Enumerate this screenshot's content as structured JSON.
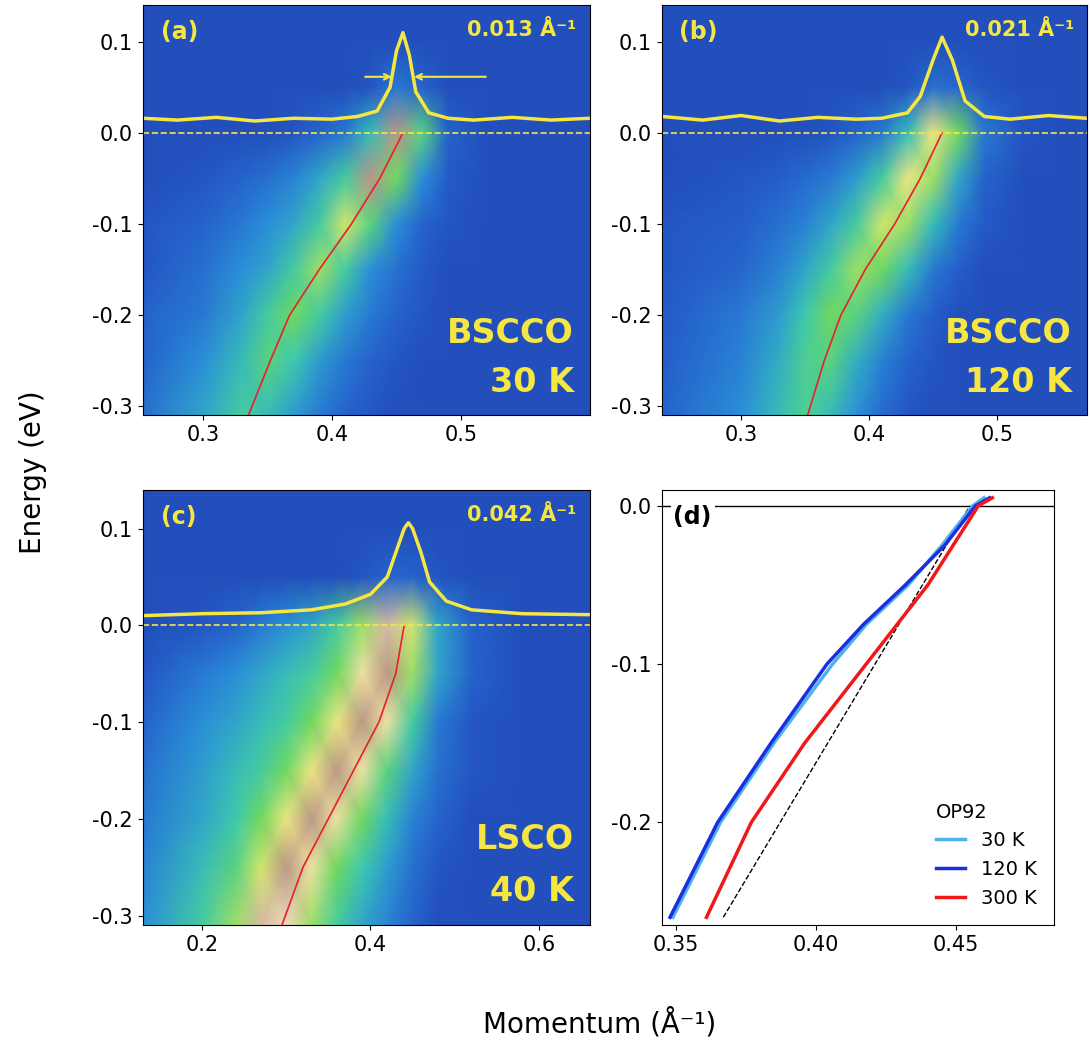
{
  "figure": {
    "xlabel": "Momentum (Å⁻¹)",
    "ylabel": "Energy (eV)"
  },
  "chart_data": [
    {
      "type": "heatmap",
      "title": "(a)",
      "annotations": [
        "BSCCO",
        "30 K"
      ],
      "x": [
        0.253,
        0.3,
        0.33,
        0.35,
        0.37,
        0.39,
        0.41,
        0.43,
        0.45,
        0.47,
        0.49,
        0.52,
        0.56,
        0.6
      ],
      "y": [
        0.14,
        0.1,
        0.05,
        0.0,
        -0.05,
        -0.1,
        -0.15,
        -0.2,
        -0.25,
        -0.31
      ],
      "cells": [
        [
          0.1,
          0.1,
          0.1,
          0.1,
          0.1,
          0.1,
          0.1,
          0.1,
          0.1,
          0.1,
          0.1,
          0.1,
          0.1,
          0.1
        ],
        [
          0.1,
          0.1,
          0.1,
          0.1,
          0.1,
          0.1,
          0.1,
          0.1,
          0.1,
          0.1,
          0.1,
          0.1,
          0.1,
          0.1
        ],
        [
          0.1,
          0.1,
          0.1,
          0.1,
          0.1,
          0.1,
          0.1,
          0.12,
          0.2,
          0.15,
          0.1,
          0.1,
          0.1,
          0.1
        ],
        [
          0.1,
          0.1,
          0.1,
          0.1,
          0.12,
          0.15,
          0.2,
          0.35,
          0.85,
          0.45,
          0.15,
          0.1,
          0.1,
          0.1
        ],
        [
          0.1,
          0.12,
          0.15,
          0.18,
          0.22,
          0.3,
          0.4,
          0.85,
          0.5,
          0.25,
          0.13,
          0.1,
          0.1,
          0.1
        ],
        [
          0.12,
          0.15,
          0.2,
          0.25,
          0.3,
          0.4,
          0.6,
          0.45,
          0.25,
          0.15,
          0.12,
          0.1,
          0.1,
          0.1
        ],
        [
          0.12,
          0.18,
          0.25,
          0.3,
          0.4,
          0.55,
          0.4,
          0.25,
          0.18,
          0.13,
          0.1,
          0.1,
          0.1,
          0.1
        ],
        [
          0.15,
          0.2,
          0.3,
          0.4,
          0.5,
          0.4,
          0.28,
          0.2,
          0.15,
          0.12,
          0.1,
          0.1,
          0.1,
          0.1
        ],
        [
          0.15,
          0.25,
          0.35,
          0.45,
          0.38,
          0.28,
          0.2,
          0.15,
          0.12,
          0.1,
          0.1,
          0.1,
          0.1,
          0.1
        ],
        [
          0.18,
          0.3,
          0.4,
          0.35,
          0.28,
          0.2,
          0.15,
          0.12,
          0.1,
          0.1,
          0.1,
          0.1,
          0.1,
          0.1
        ]
      ],
      "intensity_range": [
        0,
        1
      ],
      "dispersion": {
        "x": [
          0.455,
          0.437,
          0.415,
          0.39,
          0.367,
          0.352,
          0.335
        ],
        "y": [
          0.0,
          -0.05,
          -0.1,
          -0.15,
          -0.2,
          -0.25,
          -0.31
        ],
        "color": "#e8202a"
      },
      "mdc": {
        "x": [
          0.253,
          0.28,
          0.31,
          0.34,
          0.37,
          0.4,
          0.42,
          0.435,
          0.445,
          0.45,
          0.455,
          0.46,
          0.465,
          0.475,
          0.49,
          0.51,
          0.54,
          0.57,
          0.6
        ],
        "y": [
          0.016,
          0.014,
          0.017,
          0.013,
          0.016,
          0.015,
          0.018,
          0.024,
          0.05,
          0.09,
          0.11,
          0.085,
          0.045,
          0.022,
          0.016,
          0.014,
          0.017,
          0.014,
          0.016
        ],
        "color": "#f5e642"
      },
      "mdc_width": {
        "value": 0.013,
        "label": "0.013 Å⁻¹"
      },
      "fermi_level": 0,
      "xlim": [
        0.253,
        0.6
      ],
      "ylim": [
        -0.31,
        0.14
      ],
      "xticks": [
        0.3,
        0.4,
        0.5
      ],
      "yticks": [
        0.1,
        0.0,
        -0.1,
        -0.2,
        -0.3
      ]
    },
    {
      "type": "heatmap",
      "title": "(b)",
      "annotations": [
        "BSCCO",
        "120 K"
      ],
      "x": [
        0.238,
        0.3,
        0.33,
        0.35,
        0.37,
        0.39,
        0.41,
        0.43,
        0.45,
        0.47,
        0.49,
        0.52,
        0.55,
        0.57
      ],
      "y": [
        0.14,
        0.1,
        0.05,
        0.0,
        -0.05,
        -0.1,
        -0.15,
        -0.2,
        -0.25,
        -0.31
      ],
      "cells": [
        [
          0.1,
          0.1,
          0.1,
          0.1,
          0.1,
          0.1,
          0.1,
          0.1,
          0.1,
          0.1,
          0.1,
          0.1,
          0.1,
          0.1
        ],
        [
          0.1,
          0.1,
          0.1,
          0.1,
          0.1,
          0.1,
          0.1,
          0.1,
          0.1,
          0.1,
          0.1,
          0.1,
          0.1,
          0.1
        ],
        [
          0.1,
          0.1,
          0.1,
          0.1,
          0.1,
          0.1,
          0.1,
          0.12,
          0.18,
          0.16,
          0.12,
          0.1,
          0.1,
          0.1
        ],
        [
          0.1,
          0.1,
          0.1,
          0.1,
          0.12,
          0.15,
          0.2,
          0.35,
          0.65,
          0.5,
          0.2,
          0.12,
          0.1,
          0.1
        ],
        [
          0.1,
          0.12,
          0.14,
          0.17,
          0.2,
          0.28,
          0.4,
          0.65,
          0.55,
          0.3,
          0.15,
          0.1,
          0.1,
          0.1
        ],
        [
          0.12,
          0.14,
          0.18,
          0.22,
          0.3,
          0.4,
          0.6,
          0.55,
          0.35,
          0.2,
          0.13,
          0.1,
          0.1,
          0.1
        ],
        [
          0.12,
          0.16,
          0.22,
          0.3,
          0.4,
          0.55,
          0.5,
          0.35,
          0.2,
          0.14,
          0.1,
          0.1,
          0.1,
          0.1
        ],
        [
          0.13,
          0.2,
          0.28,
          0.38,
          0.5,
          0.45,
          0.32,
          0.2,
          0.14,
          0.1,
          0.1,
          0.1,
          0.1,
          0.1
        ],
        [
          0.14,
          0.22,
          0.32,
          0.42,
          0.45,
          0.32,
          0.22,
          0.15,
          0.12,
          0.1,
          0.1,
          0.1,
          0.1,
          0.1
        ],
        [
          0.15,
          0.25,
          0.35,
          0.42,
          0.35,
          0.25,
          0.17,
          0.12,
          0.1,
          0.1,
          0.1,
          0.1,
          0.1,
          0.1
        ]
      ],
      "intensity_range": [
        0,
        1
      ],
      "dispersion": {
        "x": [
          0.457,
          0.44,
          0.42,
          0.397,
          0.378,
          0.365,
          0.352
        ],
        "y": [
          0.0,
          -0.05,
          -0.1,
          -0.15,
          -0.2,
          -0.25,
          -0.31
        ],
        "color": "#e8202a"
      },
      "mdc": {
        "x": [
          0.238,
          0.27,
          0.3,
          0.33,
          0.36,
          0.39,
          0.41,
          0.43,
          0.44,
          0.45,
          0.457,
          0.465,
          0.475,
          0.49,
          0.51,
          0.54,
          0.57
        ],
        "y": [
          0.018,
          0.014,
          0.019,
          0.013,
          0.017,
          0.015,
          0.016,
          0.022,
          0.04,
          0.08,
          0.105,
          0.08,
          0.035,
          0.018,
          0.015,
          0.019,
          0.016
        ],
        "color": "#f5e642"
      },
      "mdc_width": {
        "value": 0.021,
        "label": "0.021 Å⁻¹"
      },
      "fermi_level": 0,
      "xlim": [
        0.238,
        0.57
      ],
      "ylim": [
        -0.31,
        0.14
      ],
      "xticks": [
        0.3,
        0.4,
        0.5
      ],
      "yticks": [
        0.1,
        0.0,
        -0.1,
        -0.2,
        -0.3
      ]
    },
    {
      "type": "heatmap",
      "title": "(c)",
      "annotations": [
        "LSCO",
        "40 K"
      ],
      "x": [
        0.13,
        0.2,
        0.24,
        0.27,
        0.3,
        0.33,
        0.36,
        0.39,
        0.42,
        0.45,
        0.48,
        0.52,
        0.58,
        0.66
      ],
      "y": [
        0.14,
        0.1,
        0.05,
        0.0,
        -0.05,
        -0.1,
        -0.15,
        -0.2,
        -0.25,
        -0.31
      ],
      "cells": [
        [
          0.1,
          0.1,
          0.1,
          0.1,
          0.1,
          0.1,
          0.1,
          0.1,
          0.1,
          0.1,
          0.1,
          0.1,
          0.1,
          0.1
        ],
        [
          0.1,
          0.1,
          0.1,
          0.1,
          0.1,
          0.1,
          0.1,
          0.1,
          0.1,
          0.1,
          0.1,
          0.1,
          0.1,
          0.1
        ],
        [
          0.1,
          0.1,
          0.1,
          0.1,
          0.1,
          0.1,
          0.1,
          0.12,
          0.15,
          0.15,
          0.12,
          0.1,
          0.1,
          0.1
        ],
        [
          0.1,
          0.12,
          0.15,
          0.2,
          0.25,
          0.3,
          0.4,
          0.55,
          0.8,
          0.6,
          0.3,
          0.15,
          0.1,
          0.1
        ],
        [
          0.12,
          0.2,
          0.25,
          0.3,
          0.35,
          0.4,
          0.5,
          0.7,
          0.85,
          0.55,
          0.3,
          0.15,
          0.1,
          0.1
        ],
        [
          0.15,
          0.25,
          0.3,
          0.35,
          0.4,
          0.5,
          0.65,
          0.85,
          0.7,
          0.4,
          0.2,
          0.12,
          0.1,
          0.1
        ],
        [
          0.18,
          0.28,
          0.35,
          0.4,
          0.5,
          0.65,
          0.85,
          0.7,
          0.45,
          0.3,
          0.18,
          0.12,
          0.1,
          0.1
        ],
        [
          0.2,
          0.3,
          0.38,
          0.5,
          0.65,
          0.85,
          0.7,
          0.5,
          0.35,
          0.22,
          0.15,
          0.1,
          0.1,
          0.1
        ],
        [
          0.22,
          0.35,
          0.45,
          0.6,
          0.85,
          0.7,
          0.5,
          0.38,
          0.28,
          0.18,
          0.12,
          0.1,
          0.1,
          0.1
        ],
        [
          0.25,
          0.4,
          0.55,
          0.8,
          0.75,
          0.55,
          0.4,
          0.3,
          0.22,
          0.15,
          0.1,
          0.1,
          0.1,
          0.1
        ]
      ],
      "intensity_range": [
        0,
        1
      ],
      "dispersion": {
        "x": [
          0.44,
          0.43,
          0.41,
          0.38,
          0.35,
          0.32,
          0.295
        ],
        "y": [
          0.0,
          -0.05,
          -0.1,
          -0.15,
          -0.2,
          -0.25,
          -0.31
        ],
        "color": "#e8202a"
      },
      "mdc": {
        "x": [
          0.13,
          0.2,
          0.27,
          0.33,
          0.37,
          0.4,
          0.42,
          0.43,
          0.44,
          0.445,
          0.45,
          0.46,
          0.47,
          0.49,
          0.52,
          0.58,
          0.66
        ],
        "y": [
          0.01,
          0.012,
          0.013,
          0.016,
          0.022,
          0.032,
          0.05,
          0.075,
          0.1,
          0.106,
          0.1,
          0.075,
          0.045,
          0.025,
          0.016,
          0.012,
          0.011
        ],
        "color": "#f5e642"
      },
      "mdc_width": {
        "value": 0.042,
        "label": "0.042 Å⁻¹"
      },
      "fermi_level": 0,
      "xlim": [
        0.13,
        0.66
      ],
      "ylim": [
        -0.31,
        0.14
      ],
      "xticks": [
        0.2,
        0.4,
        0.6
      ],
      "yticks": [
        0.1,
        0.0,
        -0.1,
        -0.2,
        -0.3
      ]
    },
    {
      "type": "line",
      "title": "(d)",
      "legend": "lower right",
      "legend_title": "OP92",
      "y": [
        0.005,
        0.0,
        -0.025,
        -0.05,
        -0.075,
        -0.1,
        -0.15,
        -0.2,
        -0.26
      ],
      "series": [
        {
          "name": "30 K",
          "color": "#4cb4ea",
          "x": [
            0.46,
            0.456,
            0.445,
            0.433,
            0.418,
            0.406,
            0.385,
            0.366,
            0.349
          ]
        },
        {
          "name": "120 K",
          "color": "#1c2ee0",
          "x": [
            0.462,
            0.457,
            0.446,
            0.432,
            0.417,
            0.404,
            0.384,
            0.365,
            0.348
          ]
        },
        {
          "name": "300 K",
          "color": "#f01818",
          "x": [
            0.463,
            0.458,
            0.449,
            0.44,
            0.429,
            0.418,
            0.396,
            0.377,
            0.361
          ]
        }
      ],
      "reference_line": {
        "x": [
          0.367,
          0.455
        ],
        "y": [
          -0.26,
          0.0
        ],
        "color": "#000000",
        "line_style": "dashed"
      },
      "fermi_level": 0,
      "xlim": [
        0.345,
        0.485
      ],
      "ylim": [
        -0.265,
        0.01
      ],
      "xticks": [
        0.35,
        {
          "value": 0.4,
          "label": "0.40"
        },
        0.45
      ],
      "yticks": [
        0.0,
        -0.1,
        -0.2
      ]
    }
  ]
}
